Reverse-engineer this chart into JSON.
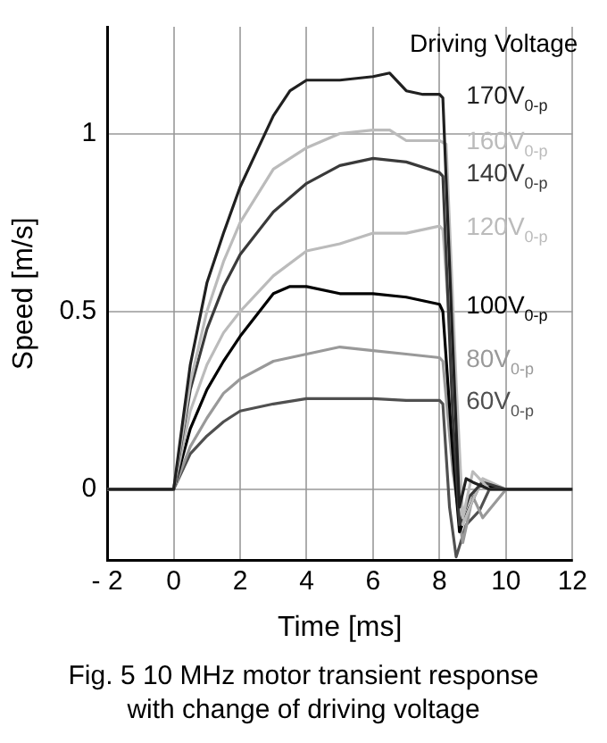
{
  "chart_data": {
    "type": "line",
    "xlabel": "Time [ms]",
    "ylabel": "Speed [m/s]",
    "legend_title": "Driving Voltage",
    "annotations": [
      "Fig. 5  10 MHz motor transient response\nwith change of driving voltage"
    ],
    "xlim": [
      -2,
      12
    ],
    "ylim": [
      -0.2,
      1.3
    ],
    "xticks": [
      {
        "value": -2,
        "label": "- 2"
      },
      0,
      2,
      4,
      6,
      8,
      10,
      12
    ],
    "yticks": [
      0,
      0.5,
      1
    ],
    "grid": true,
    "legend": false,
    "marker": "none",
    "line_style": "solid",
    "series": [
      {
        "name": "170V$_{0-p}$",
        "color": "#202020",
        "x": [
          -2,
          0,
          0.5,
          1,
          1.5,
          2,
          2.5,
          3,
          3.5,
          4,
          5,
          6,
          6.5,
          7,
          7.5,
          8,
          8.1,
          8.4,
          8.6,
          8.8,
          9,
          9.5,
          10,
          12
        ],
        "values": [
          0,
          0,
          0.35,
          0.58,
          0.72,
          0.85,
          0.95,
          1.05,
          1.12,
          1.15,
          1.15,
          1.16,
          1.17,
          1.12,
          1.11,
          1.11,
          1.1,
          0.4,
          -0.05,
          0.03,
          0.02,
          0,
          0,
          0
        ]
      },
      {
        "name": "160V$_{0-p}$",
        "color": "#bbbbbb",
        "x": [
          -2,
          0,
          0.5,
          1,
          1.5,
          2,
          3,
          4,
          5,
          6,
          6.5,
          7,
          8,
          8.2,
          8.5,
          8.7,
          9,
          9.5,
          10,
          12
        ],
        "values": [
          0,
          0,
          0.3,
          0.5,
          0.64,
          0.75,
          0.9,
          0.96,
          1,
          1.01,
          1.01,
          0.98,
          0.98,
          0.97,
          0.3,
          -0.08,
          0.05,
          0,
          0,
          0
        ]
      },
      {
        "name": "140V$_{0-p}$",
        "color": "#3a3a3a",
        "x": [
          -2,
          0,
          0.5,
          1,
          1.5,
          2,
          3,
          4,
          5,
          6,
          7,
          8,
          8.1,
          8.4,
          8.6,
          8.9,
          9.3,
          10,
          12
        ],
        "values": [
          0,
          0,
          0.28,
          0.45,
          0.57,
          0.66,
          0.78,
          0.86,
          0.91,
          0.93,
          0.92,
          0.89,
          0.88,
          0.2,
          -0.1,
          -0.02,
          0.02,
          0,
          0
        ]
      },
      {
        "name": "120V$_{0-p}$",
        "color": "#bbbbbb",
        "x": [
          -2,
          0,
          0.5,
          1,
          1.5,
          2,
          3,
          4,
          5,
          6,
          7,
          8,
          8.1,
          8.5,
          8.7,
          9,
          9.3,
          10,
          12
        ],
        "values": [
          0,
          0,
          0.22,
          0.35,
          0.44,
          0.5,
          0.6,
          0.67,
          0.69,
          0.72,
          0.72,
          0.74,
          0.73,
          0.2,
          -0.1,
          -0.03,
          0.03,
          0,
          0
        ]
      },
      {
        "name": "100V$_{0-p}$",
        "color": "#000000",
        "x": [
          -2,
          0,
          0.5,
          1,
          1.5,
          2,
          3,
          3.5,
          4,
          5,
          6,
          7,
          8,
          8.1,
          8.4,
          8.6,
          8.9,
          9.2,
          10,
          12
        ],
        "values": [
          0,
          0,
          0.17,
          0.28,
          0.36,
          0.43,
          0.55,
          0.57,
          0.57,
          0.55,
          0.55,
          0.54,
          0.52,
          0.5,
          0.1,
          -0.12,
          -0.05,
          0.01,
          0,
          0
        ]
      },
      {
        "name": "80V$_{0-p}$",
        "color": "#999999",
        "x": [
          -2,
          0,
          0.5,
          1,
          1.5,
          2,
          3,
          4,
          5,
          6,
          7,
          8,
          8.1,
          8.4,
          8.7,
          9,
          9.3,
          10,
          12
        ],
        "values": [
          0,
          0,
          0.12,
          0.2,
          0.27,
          0.31,
          0.36,
          0.38,
          0.4,
          0.39,
          0.38,
          0.37,
          0.36,
          0.05,
          -0.15,
          -0.02,
          -0.08,
          0,
          0
        ]
      },
      {
        "name": "60V$_{0-p}$",
        "color": "#505050",
        "x": [
          -2,
          0,
          0.5,
          1,
          1.5,
          2,
          3,
          4,
          5,
          6,
          7,
          8,
          8.1,
          8.3,
          8.5,
          8.8,
          9.2,
          9.5,
          10,
          12
        ],
        "values": [
          0,
          0,
          0.1,
          0.15,
          0.19,
          0.22,
          0.24,
          0.255,
          0.255,
          0.255,
          0.25,
          0.25,
          0.24,
          -0.05,
          -0.19,
          -0.1,
          -0.06,
          0,
          0,
          0
        ]
      }
    ]
  }
}
